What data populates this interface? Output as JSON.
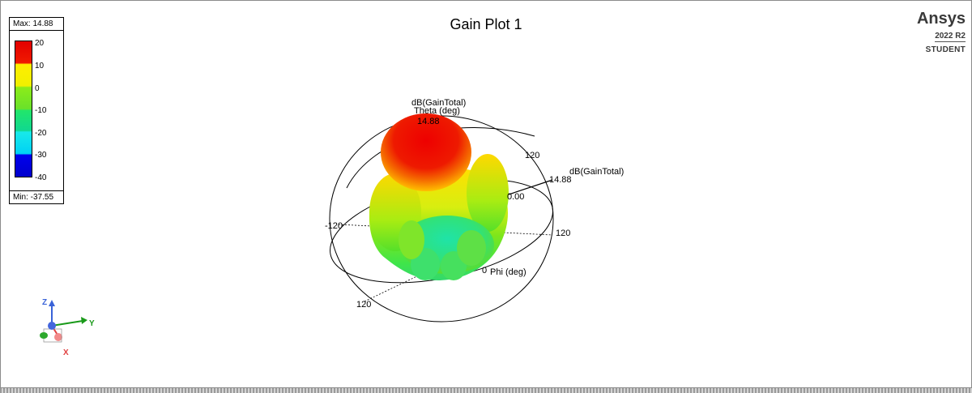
{
  "title": "Gain Plot 1",
  "brand": {
    "name": "Ansys",
    "version": "2022 R2",
    "edition": "STUDENT"
  },
  "legend": {
    "max_label": "Max: 14.88",
    "min_label": "Min: -37.55",
    "ticks": [
      "20",
      "10",
      "0",
      "-10",
      "-20",
      "-30",
      "-40"
    ],
    "colors": [
      "#e30000",
      "#ffee00",
      "#8cec19",
      "#22e66a",
      "#18e9e9",
      "#0000ee"
    ]
  },
  "plot": {
    "quantity_label_top": "dB(GainTotal)",
    "theta_label": "Theta (deg)",
    "peak_value_top": "14.88",
    "theta_tick": "120",
    "quantity_label_right": "dB(GainTotal)",
    "peak_value_right": "14.88",
    "center_value": "0.00",
    "neg_tick": "-120",
    "right_tick": "120",
    "phi_zero": "0",
    "phi_label": "Phi (deg)",
    "bottom_tick": "120"
  },
  "axis_triad": {
    "z": "Z",
    "y": "Y",
    "x": "X"
  }
}
